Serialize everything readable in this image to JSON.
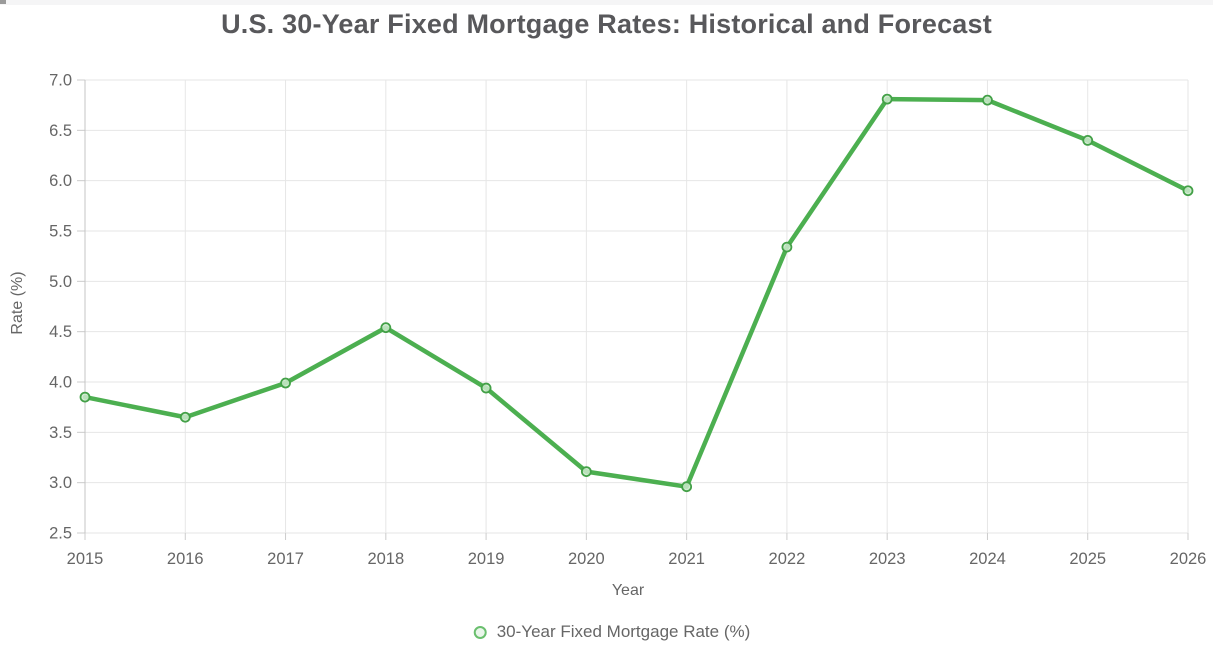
{
  "window": {
    "background": "#ffffff",
    "top_strip_color": "#f5f5f6",
    "corner_notch_color": "#9a9a9a"
  },
  "chart_data": {
    "type": "line",
    "title": "U.S. 30-Year Fixed Mortgage Rates: Historical and Forecast",
    "xlabel": "Year",
    "ylabel": "Rate (%)",
    "categories": [
      "2015",
      "2016",
      "2017",
      "2018",
      "2019",
      "2020",
      "2021",
      "2022",
      "2023",
      "2024",
      "2025",
      "2026"
    ],
    "series": [
      {
        "name": "30-Year Fixed Mortgage Rate (%)",
        "values": [
          3.85,
          3.65,
          3.99,
          4.54,
          3.94,
          3.11,
          2.96,
          5.34,
          6.81,
          6.8,
          6.4,
          5.9
        ],
        "color": "#4caf50",
        "marker": "open-circle"
      }
    ],
    "ylim": [
      2.5,
      7.0
    ],
    "ytick_step": 0.5,
    "ytick_labels": [
      "2.5",
      "3.0",
      "3.5",
      "4.0",
      "4.5",
      "5.0",
      "5.5",
      "6.0",
      "6.5",
      "7.0"
    ],
    "grid": true,
    "legend_position": "bottom",
    "colors": {
      "grid": "#e6e6e6",
      "axis": "#c4c4c4",
      "tick": "#cccccc",
      "tick_text": "#666666",
      "title_text": "#58585b",
      "marker_fill": "#cdeacd",
      "marker_stroke": "#43a047",
      "legend_ring": "#6abf6e",
      "legend_fill": "#eaf6eb"
    }
  }
}
